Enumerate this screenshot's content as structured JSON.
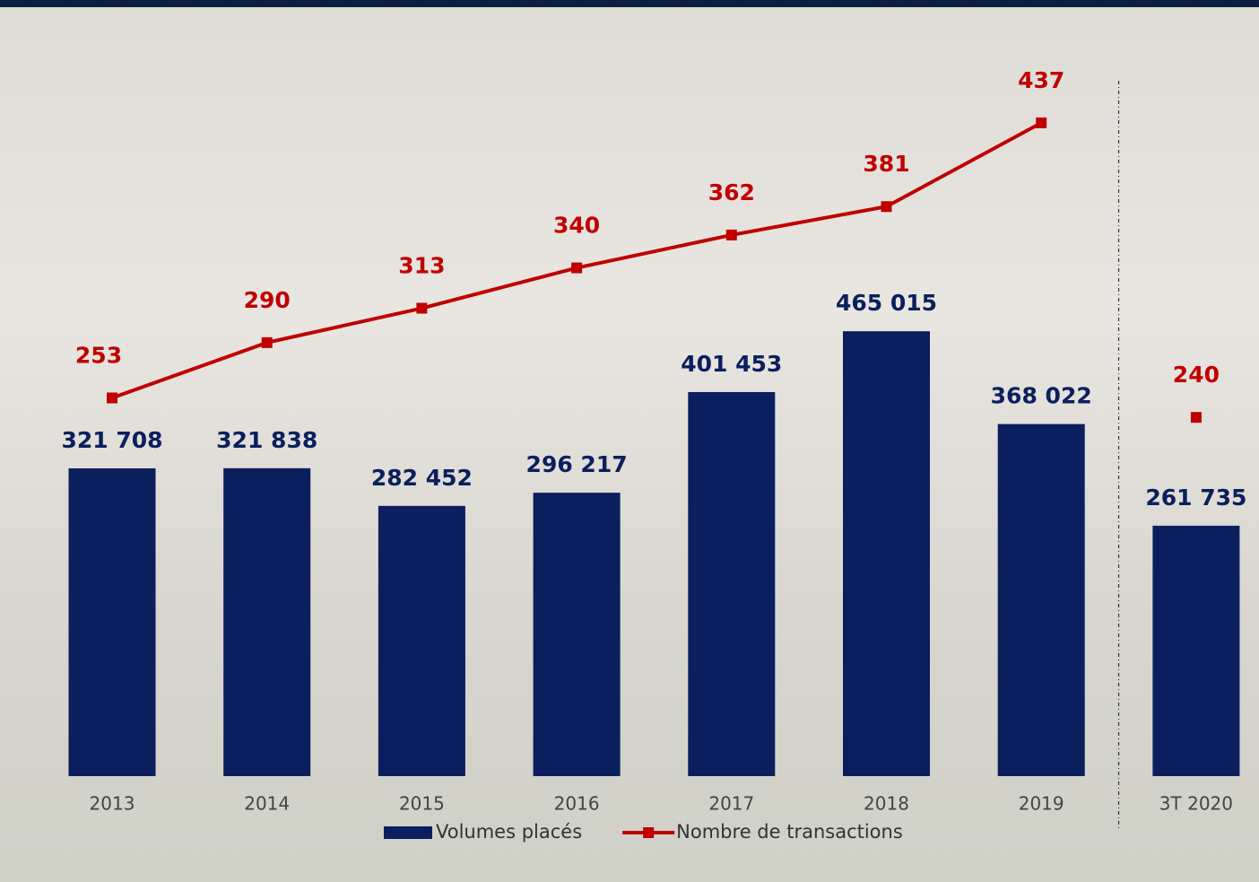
{
  "chart_data": {
    "type": "bar-line",
    "categories": [
      "2013",
      "2014",
      "2015",
      "2016",
      "2017",
      "2018",
      "2019",
      "3T 2020"
    ],
    "divider_before": "3T 2020",
    "series": [
      {
        "name": "Volumes placés",
        "type": "bar",
        "color": "#0b1f5e",
        "values": [
          321708,
          321838,
          282452,
          296217,
          401453,
          465015,
          368022,
          261735
        ],
        "value_labels": [
          "321 708",
          "321 838",
          "282 452",
          "296 217",
          "401 453",
          "465 015",
          "368 022",
          "261 735"
        ]
      },
      {
        "name": "Nombre de transactions",
        "type": "line",
        "axis": "y2",
        "color": "#c00000",
        "values": [
          253,
          290,
          313,
          340,
          362,
          381,
          437,
          240
        ]
      }
    ],
    "ylim": [
      0,
      800000
    ],
    "y2lim": [
      0,
      512
    ]
  }
}
